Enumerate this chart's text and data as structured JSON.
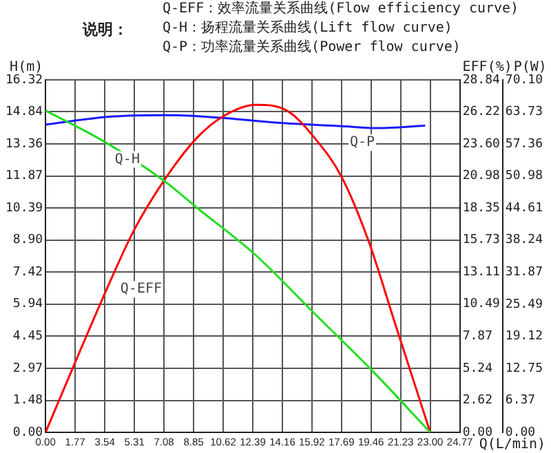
{
  "chart_data": {
    "type": "line",
    "title": "说明：",
    "annotations": [
      "Q-EFF：效率流量关系曲线(Flow efficiency curve)",
      "Q-H：扬程流量关系曲线(Lift flow curve)",
      "Q-P：功率流量关系曲线(Power flow curve)"
    ],
    "xlabel": "Q(L/min)",
    "ylabel": "H(m)",
    "y2label": "EFF(%)",
    "y3label": "P(W)",
    "series": [
      {
        "name": "Q-H",
        "color": "#22dd22",
        "x": [
          0,
          3.65,
          7.16,
          9.05,
          12.57,
          16.08,
          19.6,
          23.0
        ],
        "values": [
          14.9,
          13.4,
          11.6,
          10.4,
          8.2,
          5.5,
          2.8,
          0
        ]
      },
      {
        "name": "Q-EFF",
        "color": "#ff0000",
        "axis": "y2",
        "x": [
          0,
          1.76,
          3.65,
          5.27,
          7.03,
          9.05,
          10.67,
          12.57,
          14.46,
          16.08,
          17.7,
          19.3,
          20.9,
          23.0
        ],
        "values": [
          0,
          5.7,
          11.7,
          16.5,
          20.5,
          24.1,
          25.9,
          26.8,
          26.3,
          24.1,
          20.9,
          15.7,
          8.9,
          0
        ]
      },
      {
        "name": "Q-P",
        "color": "#1a1aff",
        "axis": "y3",
        "x": [
          0,
          3.92,
          7.16,
          10.67,
          14.2,
          17.7,
          19.86,
          22.7
        ],
        "values": [
          61.2,
          62.8,
          63.1,
          62.5,
          61.5,
          60.9,
          60.5,
          61.0
        ]
      }
    ],
    "xlim": [
      0,
      24.77
    ],
    "xticks": [
      {
        "value": 0,
        "label": "0.00"
      },
      {
        "value": 1.77,
        "label": "1.77"
      },
      {
        "value": 3.54,
        "label": "3.54"
      },
      {
        "value": 5.31,
        "label": "5.31"
      },
      {
        "value": 7.08,
        "label": "7.08"
      },
      {
        "value": 8.85,
        "label": "8.85"
      },
      {
        "value": 10.62,
        "label": "10.62"
      },
      {
        "value": 12.39,
        "label": "12.39"
      },
      {
        "value": 14.16,
        "label": "14.16"
      },
      {
        "value": 15.92,
        "label": "15.92"
      },
      {
        "value": 17.69,
        "label": "17.69"
      },
      {
        "value": 19.46,
        "label": "19.46"
      },
      {
        "value": 21.23,
        "label": "21.23"
      },
      {
        "value": 23.0,
        "label": "23.00"
      },
      {
        "value": 24.77,
        "label": "24.77"
      }
    ],
    "ylim": [
      0,
      16.32
    ],
    "yticks": [
      {
        "value": 0,
        "label": "0.00"
      },
      {
        "value": 1.48,
        "label": "1.48"
      },
      {
        "value": 2.97,
        "label": "2.97"
      },
      {
        "value": 4.45,
        "label": "4.45"
      },
      {
        "value": 5.94,
        "label": "5.94"
      },
      {
        "value": 7.42,
        "label": "7.42"
      },
      {
        "value": 8.9,
        "label": "8.90"
      },
      {
        "value": 10.39,
        "label": "10.39"
      },
      {
        "value": 11.87,
        "label": "11.87"
      },
      {
        "value": 13.36,
        "label": "13.36"
      },
      {
        "value": 14.84,
        "label": "14.84"
      },
      {
        "value": 16.32,
        "label": "16.32"
      }
    ],
    "y2lim": [
      0,
      28.84
    ],
    "y2ticks": [
      {
        "value": 0,
        "label": "0.00"
      },
      {
        "value": 2.62,
        "label": "2.62"
      },
      {
        "value": 5.24,
        "label": "5.24"
      },
      {
        "value": 7.87,
        "label": "7.87"
      },
      {
        "value": 10.49,
        "label": "10.49"
      },
      {
        "value": 13.11,
        "label": "13.11"
      },
      {
        "value": 15.73,
        "label": "15.73"
      },
      {
        "value": 18.35,
        "label": "18.35"
      },
      {
        "value": 20.98,
        "label": "20.98"
      },
      {
        "value": 23.6,
        "label": "23.60"
      },
      {
        "value": 26.22,
        "label": "26.22"
      },
      {
        "value": 28.84,
        "label": "28.84"
      }
    ],
    "y3lim": [
      0,
      70.1
    ],
    "y3ticks": [
      {
        "value": 0,
        "label": "0.00"
      },
      {
        "value": 6.37,
        "label": "6.37"
      },
      {
        "value": 12.75,
        "label": "12.75"
      },
      {
        "value": 19.12,
        "label": "19.12"
      },
      {
        "value": 25.49,
        "label": "25.49"
      },
      {
        "value": 31.87,
        "label": "31.87"
      },
      {
        "value": 38.24,
        "label": "38.24"
      },
      {
        "value": 44.61,
        "label": "44.61"
      },
      {
        "value": 50.98,
        "label": "50.98"
      },
      {
        "value": 57.36,
        "label": "57.36"
      },
      {
        "value": 63.73,
        "label": "63.73"
      },
      {
        "value": 70.1,
        "label": "70.10"
      }
    ],
    "grid": true,
    "legend": false,
    "marker": "none",
    "line_style": "solid"
  }
}
